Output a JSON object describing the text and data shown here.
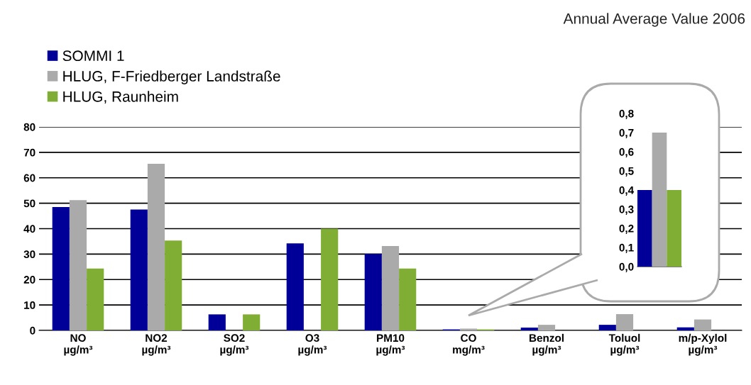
{
  "chart_data": [
    {
      "type": "bar",
      "title": "Annual Average Value 2006",
      "categories": [
        "NO\nµg/m³",
        "NO2\nµg/m³",
        "SO2\nµg/m³",
        "O3\nµg/m³",
        "PM10\nµg/m³",
        "CO\nmg/m³",
        "Benzol\nµg/m³",
        "Toluol\nµg/m³",
        "m/p-Xylol\nµg/m³"
      ],
      "series": [
        {
          "name": "SOMMI 1",
          "color": "#000099",
          "values": [
            48.5,
            47.5,
            6.3,
            34.2,
            30,
            0.4,
            1.1,
            2.2,
            1.2
          ]
        },
        {
          "name": "HLUG, F-Friedberger Landstraße",
          "color": "#aaaaaa",
          "values": [
            51.2,
            65.5,
            null,
            null,
            33.2,
            0.7,
            2.2,
            6.4,
            4.3
          ]
        },
        {
          "name": "HLUG, Raunheim",
          "color": "#80ad33",
          "values": [
            24.3,
            35.3,
            6.3,
            40,
            24.3,
            0.4,
            null,
            null,
            null
          ]
        }
      ],
      "ylim": [
        0,
        80
      ],
      "yticks": [
        0,
        10,
        20,
        30,
        40,
        50,
        60,
        70,
        80
      ],
      "grid": "y",
      "legend": "top left"
    },
    {
      "type": "bar",
      "categories": [
        null
      ],
      "series": [
        {
          "color": "#000099",
          "values": [
            0.4
          ]
        },
        {
          "color": "#aaaaaa",
          "values": [
            0.7
          ]
        },
        {
          "color": "#80ad33",
          "values": [
            0.4
          ]
        }
      ],
      "ylim": [
        0,
        0.8
      ],
      "yticks": [
        {
          "value": 0,
          "label": "0,0"
        },
        {
          "value": 0.1,
          "label": "0,1"
        },
        {
          "value": 0.2,
          "label": "0,2"
        },
        {
          "value": 0.3,
          "label": "0,3"
        },
        {
          "value": 0.4,
          "label": "0,4"
        },
        {
          "value": 0.5,
          "label": "0,5"
        },
        {
          "value": 0.6,
          "label": "0,6"
        },
        {
          "value": 0.7,
          "label": "0,7"
        },
        {
          "value": 0.8,
          "label": "0,8"
        }
      ],
      "tick_labels": "y"
    }
  ]
}
